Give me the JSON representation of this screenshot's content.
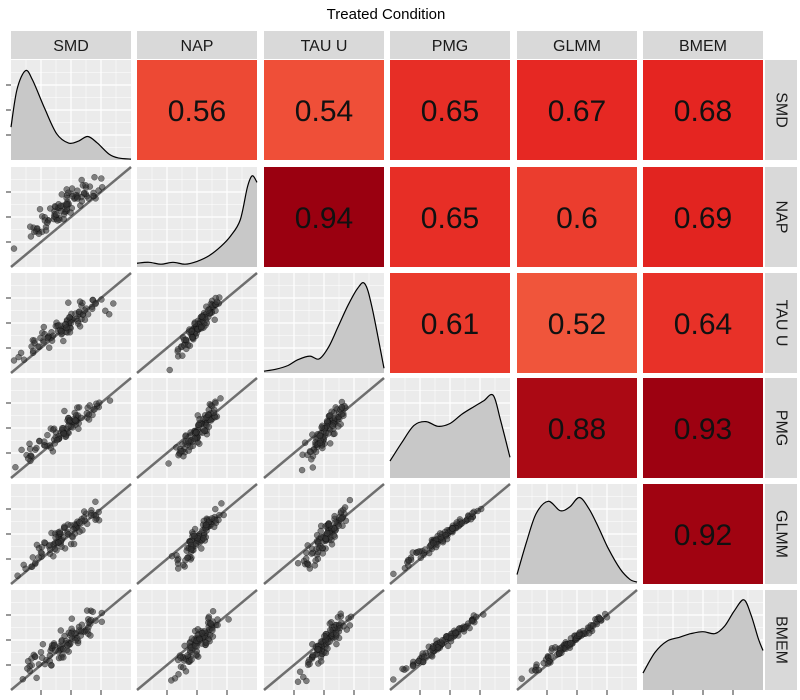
{
  "chart_data": {
    "type": "scatter",
    "title": "Treated Condition",
    "variables": [
      "SMD",
      "NAP",
      "TAU U",
      "PMG",
      "GLMM",
      "BMEM"
    ],
    "correlations": [
      {
        "row": "SMD",
        "col": "NAP",
        "value": "0.56"
      },
      {
        "row": "SMD",
        "col": "TAU U",
        "value": "0.54"
      },
      {
        "row": "SMD",
        "col": "PMG",
        "value": "0.65"
      },
      {
        "row": "SMD",
        "col": "GLMM",
        "value": "0.67"
      },
      {
        "row": "SMD",
        "col": "BMEM",
        "value": "0.68"
      },
      {
        "row": "NAP",
        "col": "TAU U",
        "value": "0.94"
      },
      {
        "row": "NAP",
        "col": "PMG",
        "value": "0.65"
      },
      {
        "row": "NAP",
        "col": "GLMM",
        "value": "0.6"
      },
      {
        "row": "NAP",
        "col": "BMEM",
        "value": "0.69"
      },
      {
        "row": "TAU U",
        "col": "PMG",
        "value": "0.61"
      },
      {
        "row": "TAU U",
        "col": "GLMM",
        "value": "0.52"
      },
      {
        "row": "TAU U",
        "col": "BMEM",
        "value": "0.64"
      },
      {
        "row": "PMG",
        "col": "GLMM",
        "value": "0.88"
      },
      {
        "row": "PMG",
        "col": "BMEM",
        "value": "0.93"
      },
      {
        "row": "GLMM",
        "col": "BMEM",
        "value": "0.92"
      }
    ],
    "color_scale": {
      "low": "#f0553b",
      "mid": "#e52521",
      "high": "#9a0010"
    },
    "diagonal": "density",
    "lower": "scatter with identity line",
    "panel_background": "#ebebeb",
    "grid": true,
    "strip_background": "#d9d9d9",
    "identity_line_color": "#6e6e6e",
    "point_color": "#333333",
    "density_fill": "#c8c8c8"
  }
}
